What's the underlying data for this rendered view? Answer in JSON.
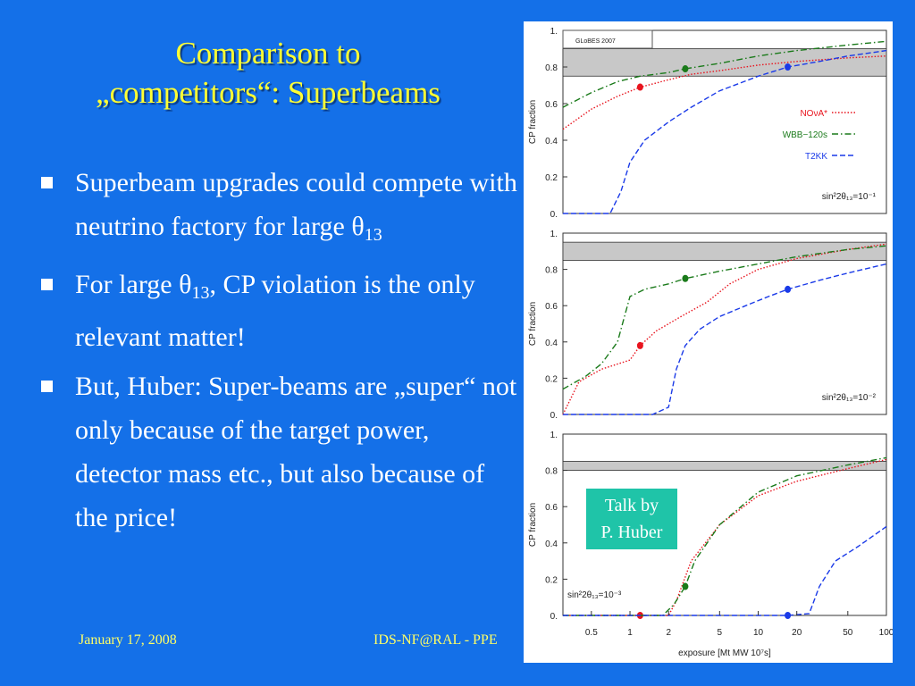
{
  "slide": {
    "title_line1": "Comparison to",
    "title_line2": "„competitors“: Superbeams",
    "bullets": [
      {
        "pre": "Superbeam upgrades could compete with neutrino factory for large θ",
        "sub": "13",
        "post": ""
      },
      {
        "pre": "For large θ",
        "sub": "13",
        "post": ", CP violation is the only relevant matter!"
      },
      {
        "pre": "But, Huber: Super-beams are „super“ not only because of the target power, detector mass etc., but also because of the price!",
        "sub": "",
        "post": ""
      }
    ],
    "footer_date": "January 17, 2008",
    "footer_venue": "IDS-NF@RAL - PPE",
    "talk_note_line1": "Talk by",
    "talk_note_line2": "P. Huber",
    "colors": {
      "background": "#1470e8",
      "title": "#ffff33",
      "text": "#ffffff",
      "footer": "#ffff66",
      "note_bg": "#1fc4a8"
    }
  },
  "chart_data": [
    {
      "type": "line",
      "panel": "top",
      "watermark": "GLoBES 2007",
      "ylabel": "CP fraction",
      "y_ticks": [
        "0.",
        "0.2",
        "0.4",
        "0.6",
        "0.8",
        "1."
      ],
      "ylim": [
        0,
        1
      ],
      "xscale": "log",
      "xlim": [
        0.3,
        100
      ],
      "band": [
        0.75,
        0.9
      ],
      "annotation": "sin²2θ₁₃=10⁻¹",
      "legend": [
        {
          "label": "NOνA*",
          "color": "#e8141e",
          "style": "dotted"
        },
        {
          "label": "WBB−120s",
          "color": "#1a7a1a",
          "style": "dashdot"
        },
        {
          "label": "T2KK",
          "color": "#1a3ae8",
          "style": "dashed"
        }
      ],
      "series": [
        {
          "name": "NOνA*",
          "x": [
            0.3,
            0.5,
            0.8,
            1.2,
            2,
            3,
            5,
            10,
            20,
            50,
            100
          ],
          "y": [
            0.46,
            0.57,
            0.64,
            0.69,
            0.73,
            0.76,
            0.78,
            0.81,
            0.83,
            0.85,
            0.86
          ],
          "marker": {
            "x": 1.2,
            "y": 0.69
          }
        },
        {
          "name": "WBB−120s",
          "x": [
            0.3,
            0.5,
            0.8,
            1.2,
            2,
            2.7,
            5,
            10,
            20,
            50,
            100
          ],
          "y": [
            0.58,
            0.66,
            0.72,
            0.75,
            0.77,
            0.79,
            0.82,
            0.86,
            0.89,
            0.92,
            0.94
          ],
          "marker": {
            "x": 2.7,
            "y": 0.79
          }
        },
        {
          "name": "T2KK",
          "x": [
            0.3,
            0.5,
            0.7,
            0.85,
            1,
            1.3,
            2,
            3,
            5,
            10,
            17,
            30,
            50,
            100
          ],
          "y": [
            0.0,
            0.0,
            0.0,
            0.12,
            0.28,
            0.4,
            0.5,
            0.58,
            0.67,
            0.75,
            0.8,
            0.83,
            0.86,
            0.89
          ],
          "marker": {
            "x": 17,
            "y": 0.8
          }
        }
      ]
    },
    {
      "type": "line",
      "panel": "middle",
      "ylabel": "CP fraction",
      "y_ticks": [
        "0.",
        "0.2",
        "0.4",
        "0.6",
        "0.8",
        "1."
      ],
      "ylim": [
        0,
        1
      ],
      "xscale": "log",
      "xlim": [
        0.3,
        100
      ],
      "band": [
        0.85,
        0.95
      ],
      "annotation": "sin²2θ₁₃=10⁻²",
      "series": [
        {
          "name": "NOνA*",
          "x": [
            0.3,
            0.4,
            0.6,
            1.0,
            1.2,
            1.6,
            2.5,
            4,
            6,
            10,
            20,
            50,
            100
          ],
          "y": [
            0.0,
            0.18,
            0.25,
            0.3,
            0.38,
            0.46,
            0.54,
            0.62,
            0.72,
            0.8,
            0.86,
            0.91,
            0.94
          ],
          "marker": {
            "x": 1.2,
            "y": 0.38
          }
        },
        {
          "name": "WBB−120s",
          "x": [
            0.3,
            0.45,
            0.6,
            0.8,
            1.0,
            1.3,
            2,
            2.7,
            5,
            10,
            20,
            50,
            100
          ],
          "y": [
            0.14,
            0.21,
            0.28,
            0.4,
            0.65,
            0.69,
            0.72,
            0.75,
            0.79,
            0.83,
            0.87,
            0.91,
            0.93
          ],
          "marker": {
            "x": 2.7,
            "y": 0.75
          }
        },
        {
          "name": "T2KK",
          "x": [
            0.3,
            1.5,
            2.0,
            2.3,
            2.7,
            3.5,
            5,
            8,
            12,
            17,
            30,
            50,
            100
          ],
          "y": [
            0.0,
            0.0,
            0.04,
            0.25,
            0.38,
            0.47,
            0.54,
            0.6,
            0.65,
            0.69,
            0.74,
            0.78,
            0.83
          ],
          "marker": {
            "x": 17,
            "y": 0.69
          }
        }
      ]
    },
    {
      "type": "line",
      "panel": "bottom",
      "ylabel": "CP fraction",
      "xlabel": "exposure [Mt MW 10⁷s]",
      "x_ticks": [
        "0.5",
        "1",
        "2",
        "5",
        "10",
        "20",
        "50",
        "100"
      ],
      "x_tick_values": [
        0.5,
        1,
        2,
        5,
        10,
        20,
        50,
        100
      ],
      "y_ticks": [
        "0.",
        "0.2",
        "0.4",
        "0.6",
        "0.8",
        "1."
      ],
      "ylim": [
        0,
        1
      ],
      "xscale": "log",
      "xlim": [
        0.3,
        100
      ],
      "band": [
        0.8,
        0.85
      ],
      "annotation": "sin²2θ₁₃=10⁻³",
      "series": [
        {
          "name": "NOνA*",
          "x": [
            0.3,
            1.2,
            2.0,
            2.3,
            3,
            5,
            10,
            20,
            50,
            100
          ],
          "y": [
            0.0,
            0.0,
            0.0,
            0.08,
            0.3,
            0.5,
            0.66,
            0.74,
            0.81,
            0.86
          ],
          "marker": {
            "x": 1.2,
            "y": 0.0
          }
        },
        {
          "name": "WBB−120s",
          "x": [
            0.3,
            1.2,
            1.8,
            2.2,
            2.7,
            3.2,
            5,
            10,
            20,
            50,
            100
          ],
          "y": [
            0.0,
            0.0,
            0.0,
            0.06,
            0.16,
            0.3,
            0.5,
            0.68,
            0.77,
            0.83,
            0.87
          ],
          "marker": {
            "x": 2.7,
            "y": 0.16
          }
        },
        {
          "name": "T2KK",
          "x": [
            0.3,
            10,
            17,
            25,
            30,
            40,
            60,
            100
          ],
          "y": [
            0.0,
            0.0,
            0.0,
            0.01,
            0.16,
            0.3,
            0.38,
            0.49
          ],
          "marker": {
            "x": 17,
            "y": 0.0
          }
        }
      ]
    }
  ]
}
